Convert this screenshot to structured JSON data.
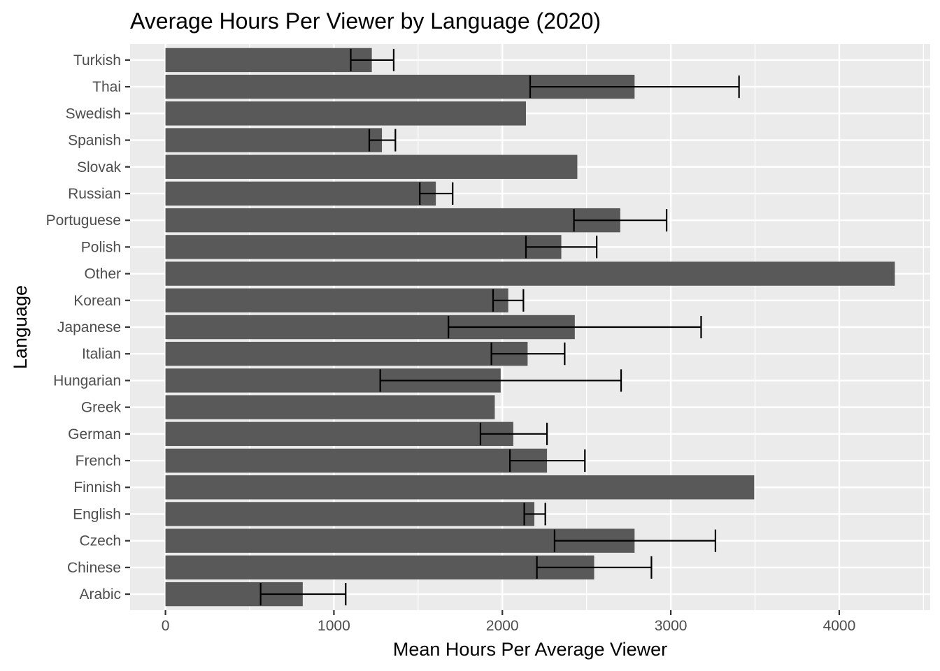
{
  "chart_data": {
    "type": "bar",
    "orientation": "horizontal",
    "title": "Average Hours Per Viewer by Language (2020)",
    "xlabel": "Mean Hours Per Average Viewer",
    "ylabel": "Language",
    "xlim": [
      -210,
      4540
    ],
    "x_ticks": [
      0,
      1000,
      2000,
      3000,
      4000
    ],
    "x_tick_labels": [
      "0",
      "1000",
      "2000",
      "3000",
      "4000"
    ],
    "grid": true,
    "legend": "none",
    "categories": [
      "Arabic",
      "Chinese",
      "Czech",
      "English",
      "Finnish",
      "French",
      "German",
      "Greek",
      "Hungarian",
      "Italian",
      "Japanese",
      "Korean",
      "Other",
      "Polish",
      "Portuguese",
      "Russian",
      "Slovak",
      "Spanish",
      "Swedish",
      "Thai",
      "Turkish"
    ],
    "values": [
      815,
      2545,
      2785,
      2190,
      3495,
      2265,
      2065,
      1955,
      1990,
      2150,
      2430,
      2035,
      4330,
      2350,
      2700,
      1605,
      2445,
      1285,
      2140,
      2785,
      1225
    ],
    "error_bars": [
      [
        565,
        1070
      ],
      [
        2205,
        2885
      ],
      [
        2310,
        3265
      ],
      [
        2130,
        2255
      ],
      null,
      [
        2045,
        2490
      ],
      [
        1870,
        2265
      ],
      null,
      [
        1275,
        2705
      ],
      [
        1935,
        2370
      ],
      [
        1680,
        3180
      ],
      [
        1945,
        2125
      ],
      null,
      [
        2140,
        2560
      ],
      [
        2425,
        2975
      ],
      [
        1510,
        1705
      ],
      null,
      [
        1210,
        1365
      ],
      null,
      [
        2165,
        3405
      ],
      [
        1100,
        1355
      ]
    ],
    "colors": {
      "bar": "#595959",
      "panel_background": "#ebebeb",
      "grid_major": "#ffffff",
      "error_bar": "#000000",
      "tick_text": "#4d4d4d",
      "tick_mark": "#333333"
    }
  }
}
